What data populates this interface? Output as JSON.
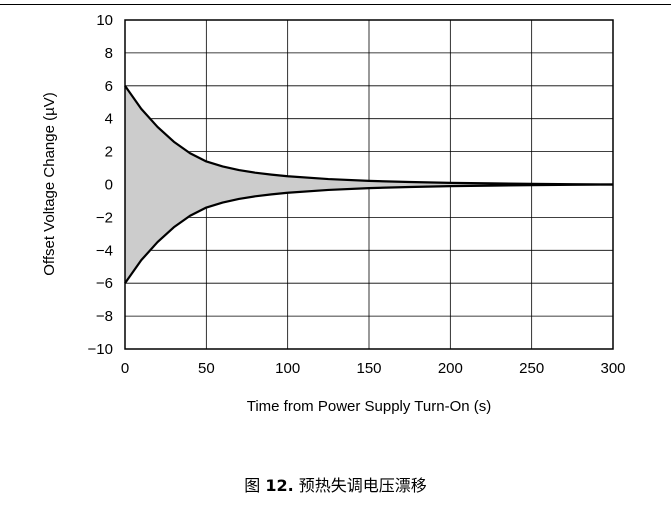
{
  "chart_data": {
    "type": "area",
    "title": "",
    "xlabel": "Time from Power Supply Turn-On (s)",
    "ylabel": "Offset Voltage Change (µV)",
    "xlim": [
      0,
      300
    ],
    "ylim": [
      -10,
      10
    ],
    "xticks": [
      "0",
      "50",
      "100",
      "150",
      "200",
      "250",
      "300"
    ],
    "yticks": [
      "10",
      "8",
      "6",
      "4",
      "2",
      "0",
      "−2",
      "−4",
      "−6",
      "−8",
      "−10"
    ],
    "grid": true,
    "fill_color": "#cccccc",
    "line_color": "#000000",
    "series": [
      {
        "x": [
          0,
          10,
          20,
          30,
          40,
          50,
          60,
          70,
          80,
          90,
          100,
          125,
          150,
          175,
          200,
          225,
          250,
          275,
          300
        ],
        "values": [
          6.0,
          4.6,
          3.5,
          2.6,
          1.9,
          1.4,
          1.1,
          0.88,
          0.72,
          0.6,
          0.5,
          0.33,
          0.22,
          0.15,
          0.1,
          0.07,
          0.04,
          0.02,
          0.0
        ]
      },
      {
        "x": [
          0,
          10,
          20,
          30,
          40,
          50,
          60,
          70,
          80,
          90,
          100,
          125,
          150,
          175,
          200,
          225,
          250,
          275,
          300
        ],
        "values": [
          -6.0,
          -4.6,
          -3.5,
          -2.6,
          -1.9,
          -1.4,
          -1.1,
          -0.88,
          -0.72,
          -0.6,
          -0.5,
          -0.33,
          -0.22,
          -0.15,
          -0.1,
          -0.07,
          -0.04,
          -0.02,
          0.0
        ]
      }
    ]
  },
  "caption": {
    "prefix": "图 ",
    "number": "12.",
    "text": " 预热失调电压漂移"
  }
}
